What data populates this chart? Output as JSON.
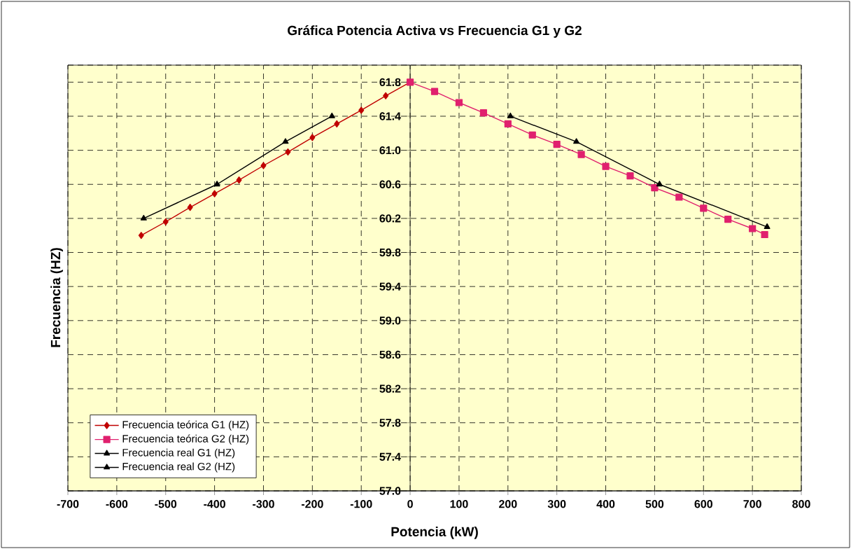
{
  "chart_data": {
    "type": "line",
    "title": "Gráfica Potencia Activa vs Frecuencia  G1 y G2",
    "xlabel": "Potencia (kW)",
    "ylabel": "Frecuencia (HZ)",
    "xlim": [
      -700,
      800
    ],
    "xticks": [
      -700,
      -600,
      -500,
      -400,
      -300,
      -200,
      -100,
      0,
      100,
      200,
      300,
      400,
      500,
      600,
      700,
      800
    ],
    "ylim": [
      57.0,
      62.0
    ],
    "yticks": [
      {
        "value": 57.0,
        "label": "57.0"
      },
      {
        "value": 57.4,
        "label": "57.4"
      },
      {
        "value": 57.8,
        "label": "57.8"
      },
      {
        "value": 58.2,
        "label": "58.2"
      },
      {
        "value": 58.6,
        "label": "58.6"
      },
      {
        "value": 59.0,
        "label": "59.0"
      },
      {
        "value": 59.4,
        "label": "59.4"
      },
      {
        "value": 59.8,
        "label": "59.8"
      },
      {
        "value": 60.2,
        "label": "60.2"
      },
      {
        "value": 60.6,
        "label": "60.6"
      },
      {
        "value": 61.0,
        "label": "61.0"
      },
      {
        "value": 61.4,
        "label": "61.4"
      },
      {
        "value": 61.8,
        "label": "61.8"
      },
      {
        "value": 62.0,
        "label": null
      }
    ],
    "grid": true,
    "legend": "bottom left",
    "line_style": "solid",
    "series": [
      {
        "name": "Frecuencia teórica G1 (HZ)",
        "color": "#c00000",
        "marker": "diamond",
        "x": [
          -550,
          -500,
          -450,
          -400,
          -350,
          -300,
          -250,
          -200,
          -150,
          -100,
          -50,
          0
        ],
        "values": [
          60.0,
          60.16,
          60.33,
          60.49,
          60.65,
          60.82,
          60.98,
          61.15,
          61.31,
          61.47,
          61.64,
          61.8
        ]
      },
      {
        "name": "Frecuencia teórica G2 (HZ)",
        "color": "#e0206e",
        "marker": "square",
        "x": [
          0,
          50,
          100,
          150,
          200,
          250,
          300,
          350,
          400,
          450,
          500,
          550,
          600,
          650,
          700,
          725
        ],
        "values": [
          61.8,
          61.69,
          61.56,
          61.44,
          61.31,
          61.18,
          61.07,
          60.95,
          60.81,
          60.7,
          60.56,
          60.45,
          60.32,
          60.19,
          60.08,
          60.01
        ]
      },
      {
        "name": "Frecuencia real G1 (HZ)",
        "color": "#000000",
        "marker": "triangle",
        "x": [
          -545,
          -395,
          -255,
          -160
        ],
        "values": [
          60.2,
          60.6,
          61.1,
          61.4
        ]
      },
      {
        "name": "Frecuencia real G2 (HZ)",
        "color": "#000000",
        "marker": "triangle",
        "x": [
          205,
          340,
          510,
          730
        ],
        "values": [
          61.4,
          61.1,
          60.6,
          60.1
        ]
      }
    ]
  }
}
